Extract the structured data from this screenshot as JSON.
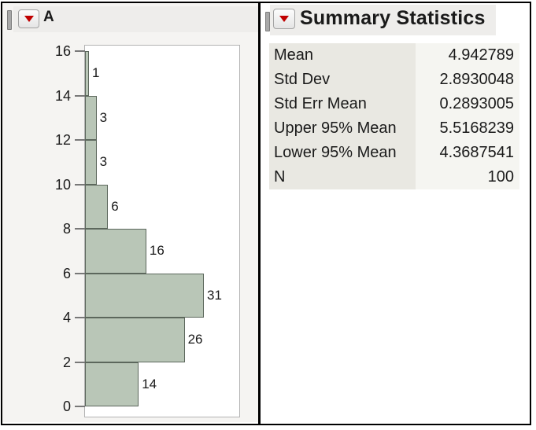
{
  "left_panel": {
    "title": "A",
    "disclosure_icon": "red-triangle-down"
  },
  "right_panel": {
    "title": "Summary Statistics",
    "disclosure_icon": "red-triangle-down",
    "stats": [
      {
        "label": "Mean",
        "value": "4.942789"
      },
      {
        "label": "Std Dev",
        "value": "2.8930048"
      },
      {
        "label": "Std Err Mean",
        "value": "0.2893005"
      },
      {
        "label": "Upper 95% Mean",
        "value": "5.5168239"
      },
      {
        "label": "Lower 95% Mean",
        "value": "4.3687541"
      },
      {
        "label": "N",
        "value": "100"
      }
    ]
  },
  "chart_data": {
    "type": "bar",
    "subtype": "histogram",
    "orientation": "horizontal",
    "title": "A",
    "bins": [
      {
        "from": 0,
        "to": 2,
        "count": 14
      },
      {
        "from": 2,
        "to": 4,
        "count": 26
      },
      {
        "from": 4,
        "to": 6,
        "count": 31
      },
      {
        "from": 6,
        "to": 8,
        "count": 16
      },
      {
        "from": 8,
        "to": 10,
        "count": 6
      },
      {
        "from": 10,
        "to": 12,
        "count": 3
      },
      {
        "from": 12,
        "to": 14,
        "count": 3
      },
      {
        "from": 14,
        "to": 16,
        "count": 1
      }
    ],
    "value_axis": {
      "min": 0,
      "max": 16,
      "tick_step": 2
    },
    "count_labels_shown": true,
    "total_n": 100,
    "grid": false,
    "legend": false
  },
  "colors": {
    "accent_red": "#c00000",
    "bar_fill": "#b9c6b7",
    "bar_border": "#5c675c",
    "panel_bg": "#f5f4f2",
    "header_strip": "#eeedeb",
    "table_label_bg": "#e9e8e2",
    "table_value_bg": "#f5f5f1",
    "plot_frame_border": "#b3b3b3",
    "window_border": "#000000"
  }
}
